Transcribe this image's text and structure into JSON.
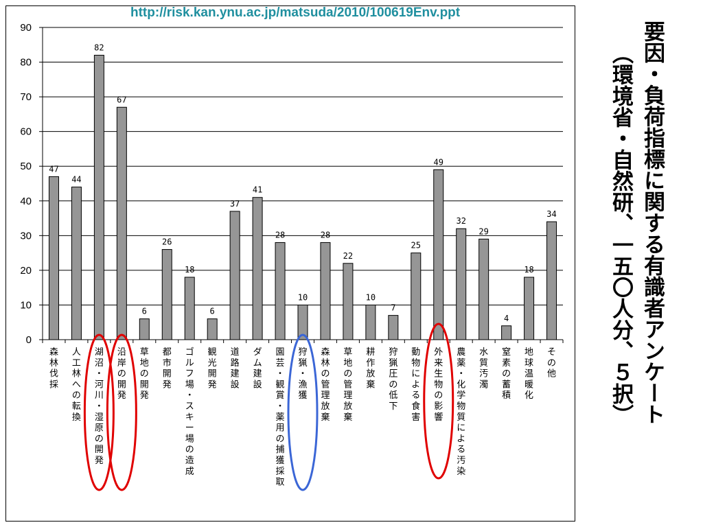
{
  "source_url": "http://risk.kan.ynu.ac.jp/matsuda/2010/100619Env.ppt",
  "title_main": "要因・負荷指標に関する有識者アンケート",
  "title_sub": "（環境省・自然研、一五〇人分、５択）",
  "highlight_colors": {
    "red": "#e00000",
    "blue": "#3b66d6"
  },
  "chart_data": {
    "type": "bar",
    "title": "",
    "xlabel": "",
    "ylabel": "",
    "ylim": [
      0,
      90
    ],
    "yticks": [
      0,
      10,
      20,
      30,
      40,
      50,
      60,
      70,
      80,
      90
    ],
    "grid": true,
    "bar_color": "#969696",
    "categories": [
      "森林伐採",
      "人工林への転換",
      "湖沼・河川・湿原の開発",
      "沿岸の開発",
      "草地の開発",
      "都市開発",
      "ゴルフ場・スキー場の造成",
      "観光開発",
      "道路建設",
      "ダム建設",
      "園芸・観賞・薬用の捕獲採取",
      "狩猟・漁獲",
      "森林の管理放棄",
      "草地の管理放棄",
      "耕作放棄",
      "狩猟圧の低下",
      "動物による食害",
      "外来生物の影響",
      "農薬・化学物質による汚染",
      "水質汚濁",
      "窒素の蓄積",
      "地球温暖化",
      "その他"
    ],
    "values": [
      47,
      44,
      82,
      67,
      6,
      26,
      18,
      6,
      37,
      41,
      28,
      10,
      28,
      22,
      10,
      7,
      25,
      49,
      32,
      29,
      4,
      18,
      34
    ],
    "highlights": [
      {
        "category_index": 2,
        "color": "red"
      },
      {
        "category_index": 3,
        "color": "red"
      },
      {
        "category_index": 11,
        "color": "blue"
      },
      {
        "category_index": 17,
        "color": "red"
      }
    ]
  }
}
